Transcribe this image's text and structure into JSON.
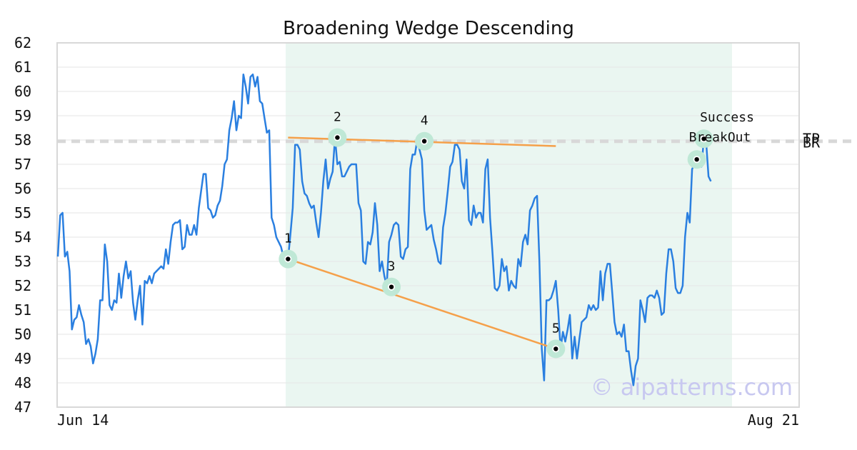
{
  "chart_data": {
    "type": "line",
    "title": "Broadening Wedge Descending",
    "xlabel": "",
    "ylabel": "",
    "x_tick_labels": [
      "Jun 14",
      "Aug 21"
    ],
    "ylim": [
      47,
      62
    ],
    "y_ticks": [
      47,
      48,
      49,
      50,
      51,
      52,
      53,
      54,
      55,
      56,
      57,
      58,
      59,
      60,
      61,
      62
    ],
    "grid": "horizontal",
    "price_series": {
      "color": "#2a7fe0",
      "values": [
        53.2,
        54.9,
        55.0,
        53.2,
        53.4,
        52.6,
        50.2,
        50.6,
        50.7,
        51.2,
        50.8,
        50.5,
        49.6,
        49.8,
        49.5,
        48.8,
        49.2,
        49.8,
        51.4,
        51.4,
        53.7,
        53.0,
        51.2,
        51.0,
        51.4,
        51.3,
        52.5,
        51.5,
        52.4,
        53.0,
        52.3,
        52.6,
        51.3,
        50.6,
        51.4,
        52.0,
        50.4,
        52.2,
        52.1,
        52.4,
        52.1,
        52.5,
        52.6,
        52.7,
        52.8,
        52.7,
        53.5,
        52.9,
        53.8,
        54.5,
        54.6,
        54.6,
        54.7,
        53.5,
        53.6,
        54.5,
        54.1,
        54.1,
        54.5,
        54.1,
        55.2,
        55.9,
        56.6,
        56.6,
        55.2,
        55.1,
        54.8,
        54.9,
        55.3,
        55.5,
        56.1,
        57.0,
        57.2,
        58.4,
        58.9,
        59.6,
        58.4,
        59.0,
        58.9,
        60.7,
        60.2,
        59.5,
        60.6,
        60.7,
        60.2,
        60.6,
        59.6,
        59.5,
        58.9,
        58.3,
        58.4,
        54.8,
        54.5,
        54.0,
        53.8,
        53.6,
        53.2,
        53.1,
        53.1,
        54.1,
        55.2,
        57.8,
        57.8,
        57.6,
        56.3,
        55.8,
        55.7,
        55.4,
        55.2,
        55.3,
        54.6,
        54.0,
        55.0,
        56.3,
        57.2,
        56.0,
        56.4,
        56.7,
        58.1,
        57.0,
        57.1,
        56.5,
        56.5,
        56.7,
        56.9,
        57.0,
        57.0,
        57.0,
        55.4,
        55.1,
        53.0,
        52.9,
        53.8,
        53.7,
        54.2,
        55.4,
        54.5,
        52.6,
        53.0,
        52.4,
        52.0,
        53.8,
        54.1,
        54.5,
        54.6,
        54.5,
        53.2,
        53.1,
        53.5,
        53.6,
        56.8,
        57.4,
        57.4,
        58.0,
        57.6,
        57.2,
        55.1,
        54.3,
        54.4,
        54.5,
        53.9,
        53.5,
        53.0,
        52.9,
        54.4,
        55.0,
        55.9,
        56.9,
        57.1,
        57.8,
        57.8,
        57.6,
        56.3,
        56.0,
        57.2,
        54.7,
        54.5,
        55.3,
        54.8,
        55.0,
        55.0,
        54.6,
        56.8,
        57.2,
        54.8,
        53.4,
        51.9,
        51.8,
        52.0,
        53.1,
        52.6,
        52.8,
        51.8,
        52.2,
        52.0,
        51.9,
        53.1,
        52.8,
        53.8,
        54.1,
        53.7,
        55.1,
        55.3,
        55.6,
        55.7,
        53.0,
        49.4,
        48.1,
        51.4,
        51.4,
        51.5,
        51.8,
        52.2,
        51.0,
        49.4,
        50.1,
        49.7,
        50.2,
        50.8,
        49.0,
        49.9,
        49.0,
        49.8,
        50.5,
        50.6,
        50.7,
        51.2,
        51.0,
        51.2,
        51.0,
        51.1,
        52.6,
        51.4,
        52.5,
        52.9,
        52.9,
        51.7,
        50.5,
        50.0,
        50.1,
        49.9,
        50.4,
        49.3,
        49.3,
        48.5,
        47.9,
        48.7,
        49.0,
        51.4,
        51.0,
        50.5,
        51.5,
        51.6,
        51.6,
        51.5,
        51.8,
        51.5,
        50.8,
        50.9,
        52.5,
        53.5,
        53.5,
        53.0,
        51.9,
        51.7,
        51.7,
        52.0,
        54.0,
        55.0,
        54.6,
        56.8,
        57.0,
        57.3,
        57.0,
        56.9,
        58.0,
        57.9,
        56.5,
        56.3
      ]
    },
    "pattern_points": [
      {
        "label": "1",
        "x": 98,
        "y": 53.1
      },
      {
        "label": "2",
        "x": 119,
        "y": 58.1
      },
      {
        "label": "3",
        "x": 142,
        "y": 51.95
      },
      {
        "label": "4",
        "x": 156,
        "y": 57.95
      },
      {
        "label": "5",
        "x": 212,
        "y": 49.4
      }
    ],
    "upper_trendline": {
      "x": [
        98,
        212
      ],
      "y": [
        58.1,
        57.75
      ],
      "color": "#f5a04a"
    },
    "lower_trendline": {
      "x": [
        98,
        212
      ],
      "y": [
        53.1,
        49.4
      ],
      "color": "#f5a04a"
    },
    "breakout_points": [
      {
        "x": 272,
        "y": 57.2
      },
      {
        "x": 275,
        "y": 58.05
      }
    ],
    "annotations": {
      "success": "Success",
      "breakout": "BreakOut"
    },
    "target_line": {
      "y": 57.95,
      "labels": [
        "TP",
        "BR"
      ]
    },
    "pattern_region": {
      "x_start": 97,
      "x_end": 287
    },
    "x_domain": [
      0,
      287
    ],
    "watermark": "© aipatterns.com",
    "colors": {
      "price": "#2a7fe0",
      "trendline": "#f5a04a",
      "region": "#eaf6f1",
      "marker_halo": "#bfe8d6",
      "target_line": "#d8d8d8"
    }
  }
}
